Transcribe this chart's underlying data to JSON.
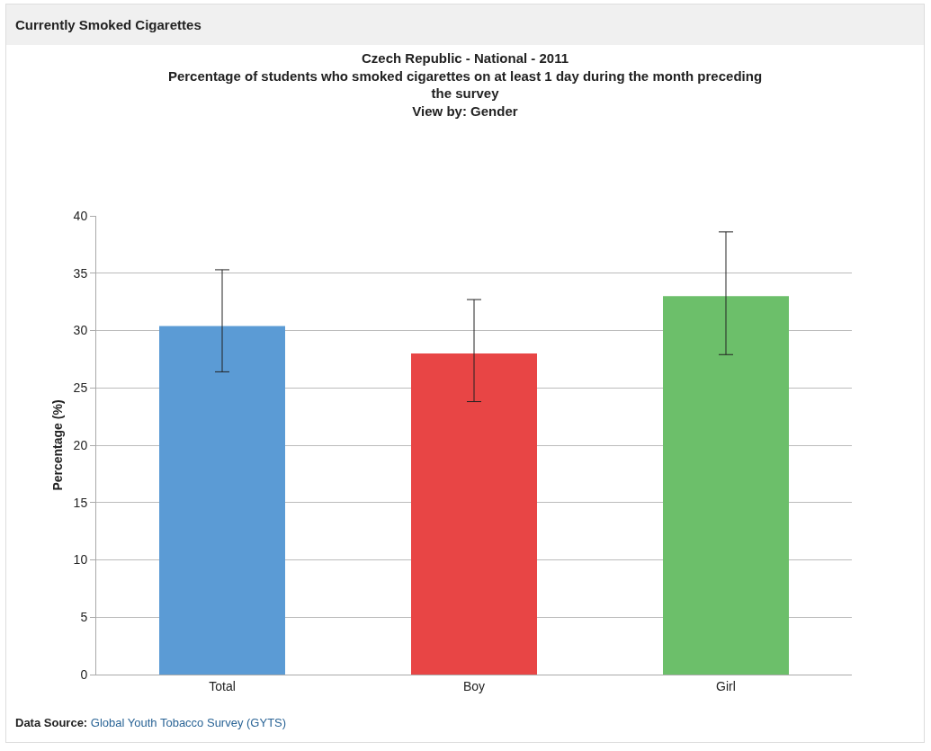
{
  "chart_data": {
    "type": "bar",
    "title": "Czech Republic - National - 2011",
    "subtitle": "Percentage of students who smoked cigarettes on at least 1 day during the month preceding the survey",
    "ylabel": "Percentage (%)",
    "annotations": [
      "Currently Smoked Cigarettes",
      "View by: Gender",
      "Data Source: Global Youth Tobacco Survey (GYTS)"
    ],
    "categories": [
      "Total",
      "Boy",
      "Girl"
    ],
    "values": [
      30.4,
      28.0,
      33.0
    ],
    "colors": [
      "#5b9bd5",
      "#e84545",
      "#6cbf6a"
    ],
    "errors": [
      [
        26.4,
        35.3
      ],
      [
        23.8,
        32.7
      ],
      [
        27.9,
        38.6
      ]
    ],
    "ylim": [
      0,
      40
    ],
    "yticks": [
      0,
      5,
      10,
      15,
      20,
      25,
      30,
      35,
      40
    ],
    "grid": "y"
  }
}
